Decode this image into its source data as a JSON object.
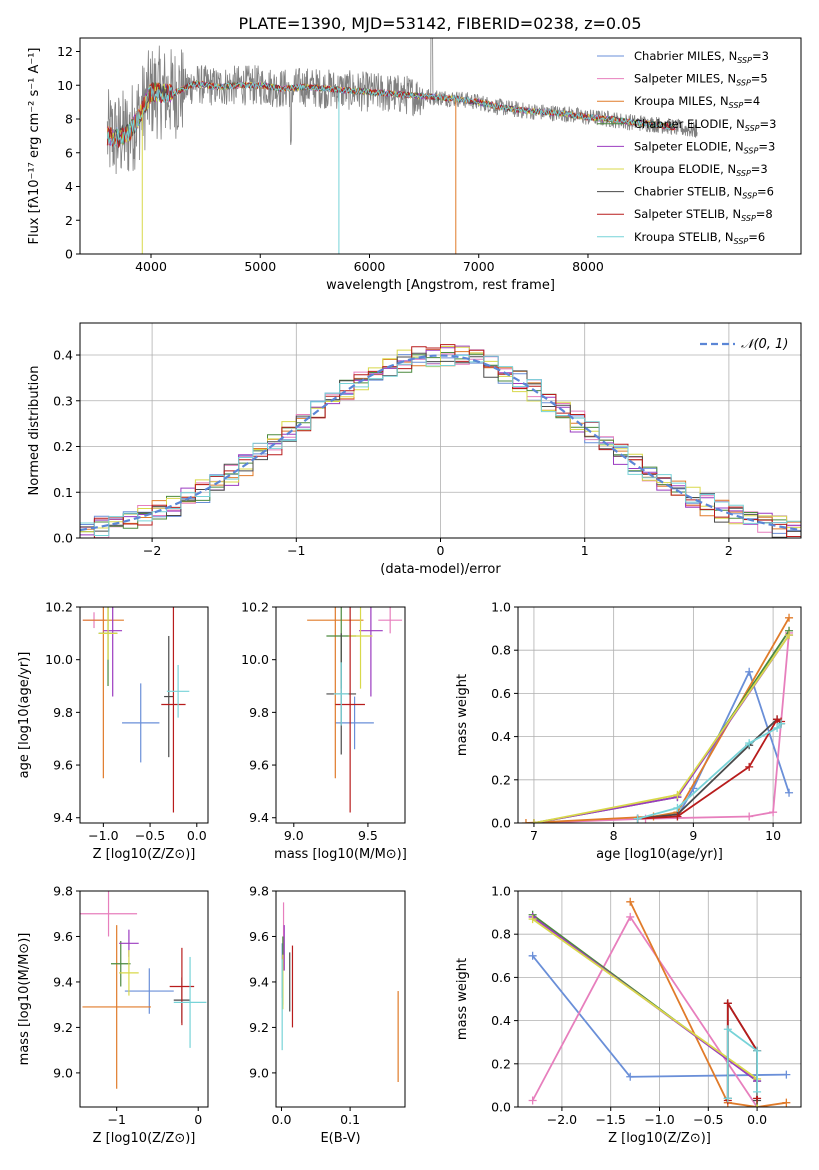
{
  "figure_title": "PLATE=1390, MJD=53142, FIBERID=0238, z=0.05",
  "series_colors": [
    "#6a8fd8",
    "#e77fbd",
    "#e07b2a",
    "#4c8a3e",
    "#9b3bc0",
    "#d8d84a",
    "#4a4a4a",
    "#b81c1c",
    "#77d3d8"
  ],
  "chart_data": [
    {
      "id": "spectrum",
      "type": "line",
      "xlabel": "wavelength [Angstrom, rest frame]",
      "ylabel": "Flux [fλ10⁻¹⁷ erg cm⁻² s⁻¹ A⁻¹]",
      "xlim": [
        3350,
        9950
      ],
      "ylim": [
        0,
        12.8
      ],
      "xticks": [
        4000,
        5000,
        6000,
        7000,
        8000
      ],
      "yticks": [
        0,
        2,
        4,
        6,
        8,
        10,
        12
      ],
      "grid": false,
      "legend_position": "top-right",
      "legend": [
        {
          "label": "Chabrier MILES, N",
          "sub": "SSP",
          "tail": "=3"
        },
        {
          "label": "Salpeter MILES, N",
          "sub": "SSP",
          "tail": "=5"
        },
        {
          "label": "Kroupa MILES, N",
          "sub": "SSP",
          "tail": "=4"
        },
        {
          "label": "Chabrier ELODIE, N",
          "sub": "SSP",
          "tail": "=3"
        },
        {
          "label": "Salpeter ELODIE, N",
          "sub": "SSP",
          "tail": "=3"
        },
        {
          "label": "Kroupa ELODIE, N",
          "sub": "SSP",
          "tail": "=3"
        },
        {
          "label": "Chabrier STELIB, N",
          "sub": "SSP",
          "tail": "=6"
        },
        {
          "label": "Salpeter STELIB, N",
          "sub": "SSP",
          "tail": "=8"
        },
        {
          "label": "Kroupa STELIB, N",
          "sub": "SSP",
          "tail": "=6"
        }
      ],
      "continuum": {
        "x": [
          3600,
          3700,
          3800,
          3900,
          4000,
          4200,
          4400,
          4600,
          4800,
          5000,
          5200,
          5400,
          5600,
          5800,
          6000,
          6200,
          6400,
          6600,
          6800,
          7000,
          7200,
          7400,
          7600,
          7800,
          8000,
          8200,
          8400,
          8600,
          8800,
          9000
        ],
        "y": [
          7.0,
          6.9,
          7.2,
          8.3,
          9.6,
          9.5,
          10.1,
          9.9,
          10.0,
          10.0,
          9.8,
          9.9,
          9.8,
          9.7,
          9.6,
          9.5,
          9.4,
          9.3,
          9.2,
          9.0,
          8.7,
          8.5,
          8.4,
          8.3,
          8.1,
          8.0,
          7.8,
          7.7,
          7.5,
          7.3
        ]
      }
    },
    {
      "id": "residuals",
      "type": "histogram",
      "xlabel": "(data-model)/error",
      "ylabel": "Normed distribution",
      "xlim": [
        -2.5,
        2.5
      ],
      "ylim": [
        0,
        0.47
      ],
      "xticks": [
        -2,
        -1,
        0,
        1,
        2
      ],
      "yticks": [
        0.0,
        0.1,
        0.2,
        0.3,
        0.4
      ],
      "grid": true,
      "legend_position": "top-right",
      "reference_curve": {
        "label": "𝒩(0, 1)",
        "mean": 0,
        "sigma": 1,
        "style": "dashed"
      },
      "bin_width": 0.1
    },
    {
      "id": "age-vs-Z",
      "type": "errorbar",
      "xlabel": "Z [log10(Z/Z⊙)]",
      "ylabel": "age  [log10(age/yr)]",
      "xlim": [
        -1.25,
        0.12
      ],
      "ylim": [
        9.38,
        10.2
      ],
      "xticks": [
        -1.0,
        -0.5,
        0.0
      ],
      "yticks": [
        9.4,
        9.6,
        9.8,
        10.0,
        10.2
      ],
      "grid": false,
      "points": [
        {
          "x": -0.6,
          "y": 9.76,
          "xerr": 0.2,
          "yerr": 0.15
        },
        {
          "x": -1.1,
          "y": 10.15,
          "xerr": 0.12,
          "yerr": 0.03
        },
        {
          "x": -1.0,
          "y": 10.15,
          "xerr": 0.22,
          "yerr": 0.6
        },
        {
          "x": -0.95,
          "y": 10.1,
          "xerr": 0.1,
          "yerr": 0.2
        },
        {
          "x": -0.9,
          "y": 10.11,
          "xerr": 0.1,
          "yerr": 0.25
        },
        {
          "x": -0.95,
          "y": 10.1,
          "xerr": 0.1,
          "yerr": 0.1
        },
        {
          "x": -0.3,
          "y": 9.86,
          "xerr": 0.05,
          "yerr": 0.23
        },
        {
          "x": -0.25,
          "y": 9.83,
          "xerr": 0.13,
          "yerr": 0.41
        },
        {
          "x": -0.2,
          "y": 9.88,
          "xerr": 0.12,
          "yerr": 0.1
        }
      ]
    },
    {
      "id": "age-vs-mass",
      "type": "errorbar",
      "xlabel": "mass [log10(M/M⊙)]",
      "ylabel": "",
      "xlim": [
        8.88,
        9.75
      ],
      "ylim": [
        9.38,
        10.2
      ],
      "xticks": [
        9.0,
        9.5
      ],
      "yticks": [
        9.4,
        9.6,
        9.8,
        10.0,
        10.2
      ],
      "grid": false,
      "points": [
        {
          "x": 9.41,
          "y": 9.76,
          "xerr": 0.13,
          "yerr": 0.1
        },
        {
          "x": 9.65,
          "y": 10.15,
          "xerr": 0.08,
          "yerr": 0.05
        },
        {
          "x": 9.28,
          "y": 10.15,
          "xerr": 0.19,
          "yerr": 0.6
        },
        {
          "x": 9.32,
          "y": 10.09,
          "xerr": 0.1,
          "yerr": 0.2
        },
        {
          "x": 9.52,
          "y": 10.11,
          "xerr": 0.08,
          "yerr": 0.25
        },
        {
          "x": 9.45,
          "y": 10.09,
          "xerr": 0.08,
          "yerr": 0.2
        },
        {
          "x": 9.32,
          "y": 9.87,
          "xerr": 0.1,
          "yerr": 0.23
        },
        {
          "x": 9.38,
          "y": 9.83,
          "xerr": 0.1,
          "yerr": 0.41
        },
        {
          "x": 9.32,
          "y": 9.87,
          "xerr": 0.05,
          "yerr": 0.12
        }
      ]
    },
    {
      "id": "weight-vs-age",
      "type": "line",
      "xlabel": "age  [log10(age/yr)]",
      "ylabel": "mass weight",
      "xlim": [
        6.8,
        10.35
      ],
      "ylim": [
        0,
        1
      ],
      "xticks": [
        7,
        8,
        9,
        10
      ],
      "yticks": [
        0.0,
        0.2,
        0.4,
        0.6,
        0.8,
        1.0
      ],
      "grid": true,
      "series": [
        {
          "x": [
            8.8,
            9.0,
            9.7,
            10.2
          ],
          "y": [
            0.03,
            0.16,
            0.7,
            0.14
          ]
        },
        {
          "x": [
            7.0,
            8.4,
            9.7,
            10.0,
            10.2
          ],
          "y": [
            0.0,
            0.02,
            0.03,
            0.05,
            0.88
          ]
        },
        {
          "x": [
            6.9,
            8.5,
            8.8,
            10.2
          ],
          "y": [
            0.0,
            0.03,
            0.05,
            0.95
          ]
        },
        {
          "x": [
            7.0,
            8.8,
            10.2
          ],
          "y": [
            0.0,
            0.12,
            0.89
          ]
        },
        {
          "x": [
            7.0,
            8.8,
            10.2
          ],
          "y": [
            0.0,
            0.12,
            0.87
          ]
        },
        {
          "x": [
            7.0,
            8.8,
            10.2
          ],
          "y": [
            0.0,
            0.13,
            0.87
          ]
        },
        {
          "x": [
            8.3,
            8.8,
            9.7,
            10.05,
            10.1
          ],
          "y": [
            0.02,
            0.04,
            0.36,
            0.48,
            0.46
          ]
        },
        {
          "x": [
            8.3,
            8.8,
            9.7,
            10.05,
            10.1
          ],
          "y": [
            0.02,
            0.03,
            0.26,
            0.48,
            0.47
          ]
        },
        {
          "x": [
            8.3,
            8.8,
            9.7,
            10.05,
            10.1
          ],
          "y": [
            0.02,
            0.07,
            0.37,
            0.44,
            0.46
          ]
        }
      ]
    },
    {
      "id": "mass-vs-Z",
      "type": "errorbar",
      "xlabel": "Z [log10(Z/Z⊙)]",
      "ylabel": "mass [log10(M/M⊙)]",
      "xlim": [
        -1.45,
        0.12
      ],
      "ylim": [
        8.85,
        9.8
      ],
      "xticks": [
        -1,
        0
      ],
      "yticks": [
        9.0,
        9.2,
        9.4,
        9.6,
        9.8
      ],
      "grid": false,
      "points": [
        {
          "x": -0.6,
          "y": 9.36,
          "xerr": 0.3,
          "yerr": 0.1
        },
        {
          "x": -1.1,
          "y": 9.7,
          "xerr": 0.35,
          "yerr": 0.1
        },
        {
          "x": -1.0,
          "y": 9.29,
          "xerr": 0.42,
          "yerr": 0.36
        },
        {
          "x": -0.95,
          "y": 9.48,
          "xerr": 0.12,
          "yerr": 0.1
        },
        {
          "x": -0.85,
          "y": 9.57,
          "xerr": 0.12,
          "yerr": 0.06
        },
        {
          "x": -0.85,
          "y": 9.44,
          "xerr": 0.12,
          "yerr": 0.1
        },
        {
          "x": -0.2,
          "y": 9.32,
          "xerr": 0.1,
          "yerr": 0.1
        },
        {
          "x": -0.2,
          "y": 9.38,
          "xerr": 0.15,
          "yerr": 0.17
        },
        {
          "x": -0.1,
          "y": 9.31,
          "xerr": 0.2,
          "yerr": 0.2
        }
      ]
    },
    {
      "id": "mass-vs-EBV",
      "type": "errorbar",
      "xlabel": "E(B-V)",
      "ylabel": "",
      "xlim": [
        -0.008,
        0.18
      ],
      "ylim": [
        8.85,
        9.8
      ],
      "xticks": [
        0.0,
        0.1
      ],
      "yticks": [
        9.0,
        9.2,
        9.4,
        9.6,
        9.8
      ],
      "grid": false,
      "points": [
        {
          "x": 0.001,
          "y": 9.45,
          "xerr": 0,
          "yerr": 0.12
        },
        {
          "x": 0.003,
          "y": 9.6,
          "xerr": 0,
          "yerr": 0.15
        },
        {
          "x": 0.17,
          "y": 9.16,
          "xerr": 0,
          "yerr": 0.2
        },
        {
          "x": 0.002,
          "y": 9.45,
          "xerr": 0,
          "yerr": 0.15
        },
        {
          "x": 0.004,
          "y": 9.55,
          "xerr": 0,
          "yerr": 0.1
        },
        {
          "x": 0.002,
          "y": 9.4,
          "xerr": 0,
          "yerr": 0.12
        },
        {
          "x": 0.012,
          "y": 9.4,
          "xerr": 0,
          "yerr": 0.13
        },
        {
          "x": 0.016,
          "y": 9.38,
          "xerr": 0,
          "yerr": 0.18
        },
        {
          "x": 0.001,
          "y": 9.3,
          "xerr": 0,
          "yerr": 0.2
        }
      ]
    },
    {
      "id": "weight-vs-Z",
      "type": "line",
      "xlabel": "Z [log10(Z/Z⊙)]",
      "ylabel": "mass weight",
      "xlim": [
        -2.45,
        0.45
      ],
      "ylim": [
        0,
        1
      ],
      "xticks": [
        -2.0,
        -1.5,
        -1.0,
        -0.5,
        0.0
      ],
      "yticks": [
        0.0,
        0.2,
        0.4,
        0.6,
        0.8,
        1.0
      ],
      "grid": true,
      "series": [
        {
          "x": [
            -2.3,
            -1.3,
            0.3
          ],
          "y": [
            0.7,
            0.14,
            0.15
          ]
        },
        {
          "x": [
            -2.3,
            -1.3,
            0.0
          ],
          "y": [
            0.03,
            0.88,
            0.0
          ]
        },
        {
          "x": [
            -1.3,
            -0.3,
            0.0,
            0.3
          ],
          "y": [
            0.95,
            0.02,
            0.0,
            0.02
          ]
        },
        {
          "x": [
            -2.3,
            0.0,
            0.0
          ],
          "y": [
            0.89,
            0.12,
            0.0
          ]
        },
        {
          "x": [
            -2.3,
            0.0,
            0.0
          ],
          "y": [
            0.88,
            0.12,
            0.0
          ]
        },
        {
          "x": [
            -2.3,
            0.0,
            0.0
          ],
          "y": [
            0.87,
            0.13,
            0.0
          ]
        },
        {
          "x": [
            -0.3,
            -0.3,
            0.0,
            0.0
          ],
          "y": [
            0.04,
            0.48,
            0.26,
            0.03
          ]
        },
        {
          "x": [
            -0.3,
            -0.3,
            0.0,
            0.0
          ],
          "y": [
            0.03,
            0.48,
            0.26,
            0.04
          ]
        },
        {
          "x": [
            -0.3,
            -0.3,
            0.0,
            0.0
          ],
          "y": [
            0.04,
            0.36,
            0.26,
            0.07
          ]
        }
      ]
    }
  ]
}
